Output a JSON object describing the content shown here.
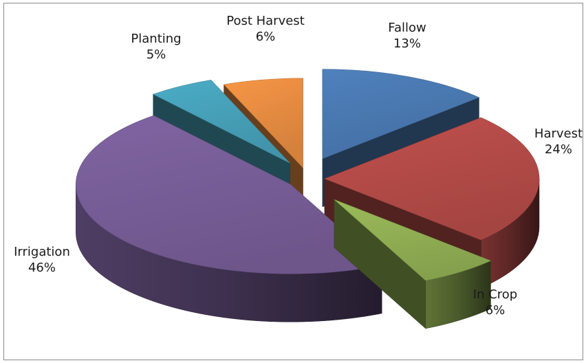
{
  "chart_data": {
    "type": "pie",
    "style": "3d-exploded",
    "categories": [
      "Fallow",
      "Harvest",
      "In Crop",
      "Irrigation",
      "Planting",
      "Post Harvest"
    ],
    "values": [
      13,
      24,
      6,
      46,
      5,
      6
    ],
    "value_labels": [
      "13%",
      "24%",
      "6%",
      "46%",
      "5%",
      "6%"
    ],
    "colors": [
      "#4f81bd",
      "#c0504d",
      "#9bbb59",
      "#8064a2",
      "#4bacc6",
      "#f79646"
    ],
    "legend": "none"
  }
}
